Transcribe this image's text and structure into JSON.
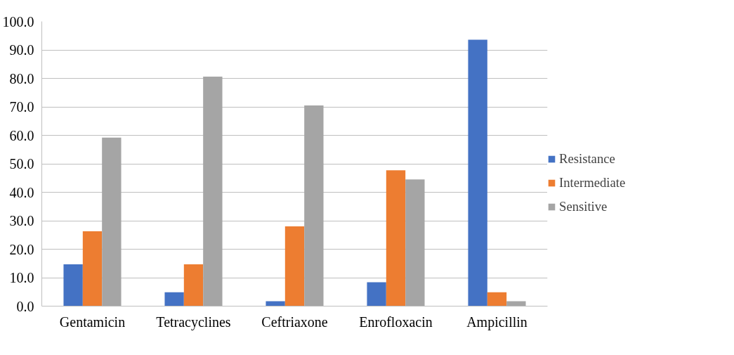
{
  "chart_data": {
    "type": "bar",
    "categories": [
      "Gentamicin",
      "Tetracyclines",
      "Ceftriaxone",
      "Enrofloxacin",
      "Ampicillin"
    ],
    "series": [
      {
        "name": "Resistance",
        "color": "#4472c4",
        "values": [
          14.7,
          4.9,
          1.7,
          8.4,
          93.6
        ]
      },
      {
        "name": "Intermediate",
        "color": "#ed7d31",
        "values": [
          26.3,
          14.7,
          28.0,
          47.7,
          4.9
        ]
      },
      {
        "name": "Sensitive",
        "color": "#a5a5a5",
        "values": [
          59.2,
          80.6,
          70.5,
          44.5,
          1.7
        ]
      }
    ],
    "ylim": [
      0,
      100
    ],
    "yticks": [
      {
        "value": 0,
        "label": "0.0"
      },
      {
        "value": 10,
        "label": "10.0"
      },
      {
        "value": 20,
        "label": "20.0"
      },
      {
        "value": 30,
        "label": "30.0"
      },
      {
        "value": 40,
        "label": "40.0"
      },
      {
        "value": 50,
        "label": "50.0"
      },
      {
        "value": 60,
        "label": "60.0"
      },
      {
        "value": 70,
        "label": "70.0"
      },
      {
        "value": 80,
        "label": "80.0"
      },
      {
        "value": 90,
        "label": "90.0"
      },
      {
        "value": 100,
        "label": "100.0"
      }
    ],
    "grid": "y",
    "legend": "right"
  }
}
